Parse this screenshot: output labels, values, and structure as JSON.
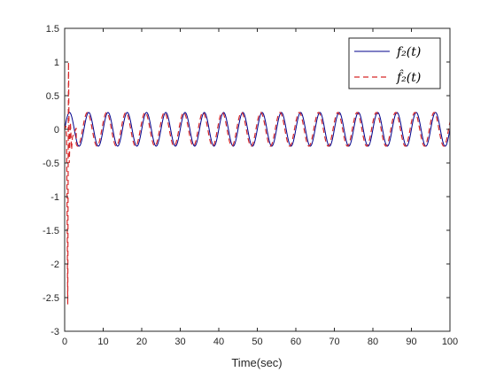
{
  "chart_data": {
    "type": "line",
    "title": "",
    "xlabel": "Time(sec)",
    "ylabel": "",
    "xlim": [
      0,
      100
    ],
    "ylim": [
      -3,
      1.5
    ],
    "xticks": [
      0,
      10,
      20,
      30,
      40,
      50,
      60,
      70,
      80,
      90,
      100
    ],
    "xtick_labels": [
      "0",
      "10",
      "20",
      "30",
      "40",
      "50",
      "60",
      "70",
      "80",
      "90",
      "100"
    ],
    "yticks": [
      -3,
      -2.5,
      -2,
      -1.5,
      -1,
      -0.5,
      0,
      0.5,
      1,
      1.5
    ],
    "ytick_labels": [
      "-3",
      "-2.5",
      "-2",
      "-1.5",
      "-1",
      "-0.5",
      "0",
      "0.5",
      "1",
      "1.5"
    ],
    "grid": false,
    "box": true,
    "legend_position": "top-right",
    "series": [
      {
        "name": "f_2(t)",
        "color": "#00008b",
        "line_style": "solid",
        "amplitude": 0.25,
        "period": 5.0,
        "phase_shift": 0.0
      },
      {
        "name": "f̂_2(t)",
        "color": "#d62728",
        "line_style": "dashed",
        "amplitude": 0.25,
        "period": 5.0,
        "phase_shift": -0.35,
        "transient": [
          [
            0.0,
            0.0
          ],
          [
            0.3,
            0.05
          ],
          [
            0.5,
            -0.1
          ],
          [
            0.8,
            -2.6
          ],
          [
            1.0,
            1.0
          ],
          [
            1.2,
            -0.5
          ],
          [
            1.5,
            0.1
          ],
          [
            1.8,
            -0.3
          ],
          [
            2.0,
            -0.12
          ],
          [
            2.5,
            -0.05
          ],
          [
            3.0,
            0.02
          ]
        ]
      }
    ]
  },
  "legend": {
    "entries": [
      "f₂(t)",
      "f̂₂(t)"
    ]
  }
}
